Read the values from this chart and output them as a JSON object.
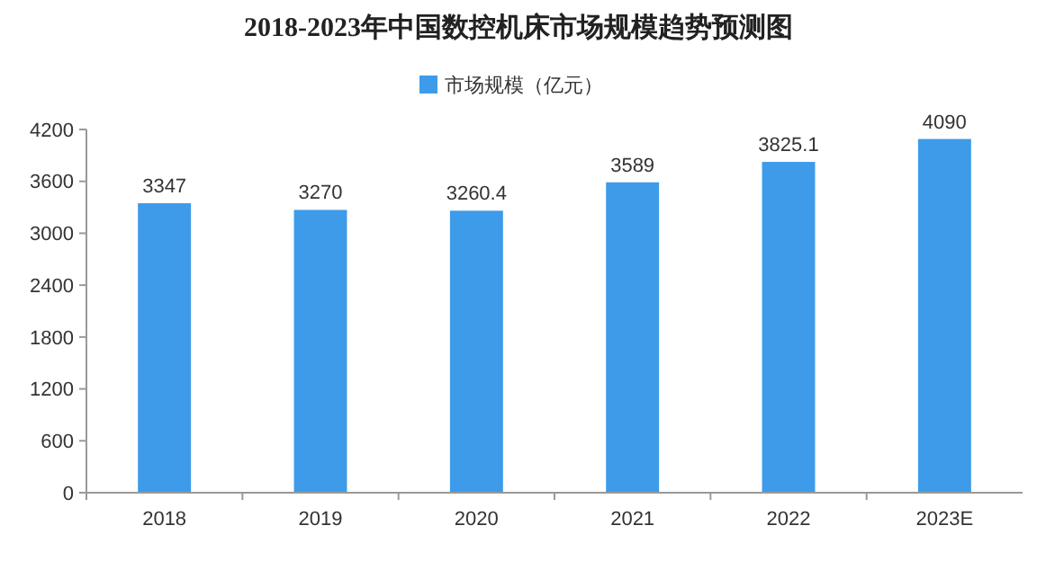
{
  "chart_data": {
    "type": "bar",
    "title": "2018-2023年中国数控机床市场规模趋势预测图",
    "categories": [
      "2018",
      "2019",
      "2020",
      "2021",
      "2022",
      "2023E"
    ],
    "series": [
      {
        "name": "市场规模（亿元）",
        "color": "#3d9be9",
        "values": [
          3347,
          3270,
          3260.4,
          3589,
          3825.1,
          4090
        ]
      }
    ],
    "ylim": [
      0,
      4200
    ],
    "yticks": [
      0,
      600,
      1200,
      1800,
      2400,
      3000,
      3600,
      4200
    ],
    "data_labels": true,
    "legend": "top",
    "grid": false
  }
}
